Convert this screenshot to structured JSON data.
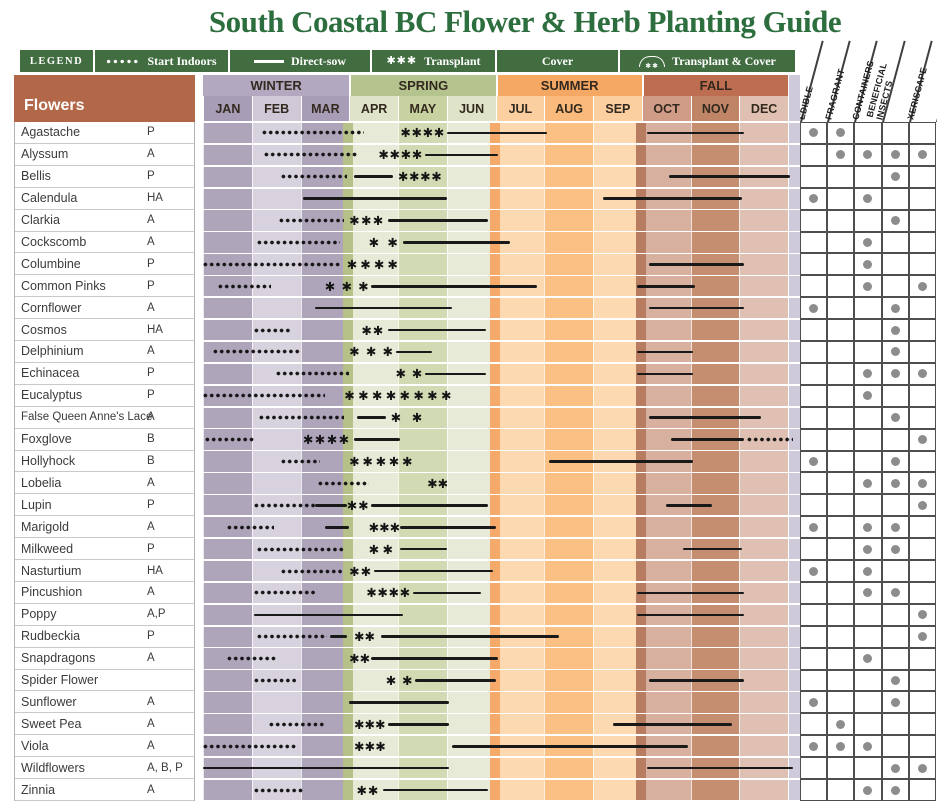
{
  "title": "South Coastal BC Flower & Herb Planting Guide",
  "legend": {
    "label": "LEGEND",
    "items": [
      {
        "symbol": "dots-icon",
        "label": "Start Indoors"
      },
      {
        "symbol": "line-icon",
        "label": "Direct-sow"
      },
      {
        "symbol": "stars-icon",
        "label": "Transplant"
      },
      {
        "symbol": "none",
        "label": "Cover"
      },
      {
        "symbol": "arc-icon",
        "label": "Transplant & Cover"
      }
    ]
  },
  "colors": {
    "title_green": "#2d6e3e",
    "legend_green": "#426d41",
    "flowers_header_bg": "#b26749",
    "season_bands": [
      "#b2a9c0",
      "#b5c48e",
      "#f5a863",
      "#bd6e50"
    ],
    "month_header": [
      "#a79db6",
      "#cfc9d7",
      "#a79db6",
      "#dfe4c9",
      "#c8d2a0",
      "#dfe4c9",
      "#fccfa0",
      "#f9ba7b",
      "#fccfa0",
      "#d09c88",
      "#c08466",
      "#e0c0b0"
    ],
    "month_body": [
      "#aea5bb",
      "#d7d2de",
      "#aea5bb",
      "#e7ead6",
      "#d2dab3",
      "#e7ead6",
      "#fdd9b2",
      "#fbc083",
      "#fdd9b2",
      "#d8b0a0",
      "#c58e71",
      "#dfc0b2"
    ],
    "season_slivers": [
      "#b5c189",
      "#f5a96b",
      "#b87c60"
    ],
    "end_strip": "#cfcad9",
    "attr_dot": "#8c8c8c",
    "symbol_black": "#191919"
  },
  "chart_data": {
    "type": "gantt",
    "title": "South Coastal BC Flower & Herb Planting Guide",
    "row_header": "Flowers",
    "x_axis_note": "timeline Jan-Dec, month units 0-12",
    "seasons": [
      {
        "name": "WINTER",
        "months": [
          "JAN",
          "FEB",
          "MAR"
        ]
      },
      {
        "name": "SPRING",
        "months": [
          "APR",
          "MAY",
          "JUN"
        ]
      },
      {
        "name": "SUMMER",
        "months": [
          "JUL",
          "AUG",
          "SEP"
        ]
      },
      {
        "name": "FALL",
        "months": [
          "OCT",
          "NOV",
          "DEC"
        ]
      }
    ],
    "attribute_columns": [
      "EDIBLE",
      "FRAGRANT",
      "CONTAINERS",
      "BENEFICIAL\nINSECTS",
      "XERISCAPE"
    ],
    "segment_types": {
      "dots": "Start Indoors",
      "line": "Direct-sow",
      "stars": "Transplant"
    },
    "rows": [
      {
        "name": "Agastache",
        "type": "P",
        "attrs": [
          1,
          1,
          0,
          0,
          0
        ],
        "segments": [
          {
            "t": "dots",
            "s": 1.2,
            "e": 3.3
          },
          {
            "t": "stars",
            "s": 4.05,
            "e": 4.95,
            "n": 4
          },
          {
            "t": "line",
            "s": 5.0,
            "e": 7.05
          },
          {
            "t": "line",
            "s": 9.1,
            "e": 11.1
          }
        ]
      },
      {
        "name": "Alyssum",
        "type": "A",
        "attrs": [
          0,
          1,
          1,
          1,
          1
        ],
        "segments": [
          {
            "t": "dots",
            "s": 1.25,
            "e": 3.2
          },
          {
            "t": "stars",
            "s": 3.6,
            "e": 4.5,
            "n": 4
          },
          {
            "t": "line",
            "s": 4.55,
            "e": 6.05
          }
        ]
      },
      {
        "name": "Bellis",
        "type": "P",
        "attrs": [
          0,
          0,
          0,
          1,
          0
        ],
        "segments": [
          {
            "t": "dots",
            "s": 1.6,
            "e": 2.95
          },
          {
            "t": "line",
            "s": 3.1,
            "e": 3.9
          },
          {
            "t": "stars",
            "s": 4.0,
            "e": 4.9,
            "n": 4
          },
          {
            "t": "line",
            "s": 9.55,
            "e": 12.05
          }
        ]
      },
      {
        "name": "Calendula",
        "type": "HA",
        "attrs": [
          1,
          0,
          1,
          0,
          0
        ],
        "segments": [
          {
            "t": "line",
            "s": 2.05,
            "e": 5.0
          },
          {
            "t": "line",
            "s": 8.2,
            "e": 11.05
          }
        ]
      },
      {
        "name": "Clarkia",
        "type": "A",
        "attrs": [
          0,
          0,
          0,
          1,
          0
        ],
        "segments": [
          {
            "t": "dots",
            "s": 1.55,
            "e": 2.9
          },
          {
            "t": "stars",
            "s": 3.0,
            "e": 3.7,
            "n": 3
          },
          {
            "t": "line",
            "s": 3.8,
            "e": 5.85
          }
        ]
      },
      {
        "name": "Cockscomb",
        "type": "A",
        "attrs": [
          0,
          0,
          1,
          0,
          0
        ],
        "segments": [
          {
            "t": "dots",
            "s": 1.1,
            "e": 2.8
          },
          {
            "t": "stars",
            "s": 3.4,
            "e": 4.0,
            "n": 2
          },
          {
            "t": "line",
            "s": 4.1,
            "e": 6.3
          }
        ]
      },
      {
        "name": "Columbine",
        "type": "P",
        "attrs": [
          0,
          0,
          1,
          0,
          0
        ],
        "segments": [
          {
            "t": "dots",
            "s": 0.0,
            "e": 2.8
          },
          {
            "t": "stars",
            "s": 2.95,
            "e": 4.0,
            "n": 4
          },
          {
            "t": "line",
            "s": 9.15,
            "e": 11.1
          }
        ]
      },
      {
        "name": "Common Pinks",
        "type": "P",
        "attrs": [
          0,
          0,
          1,
          0,
          1
        ],
        "segments": [
          {
            "t": "dots",
            "s": 0.3,
            "e": 1.4
          },
          {
            "t": "stars",
            "s": 2.5,
            "e": 3.4,
            "n": 3
          },
          {
            "t": "line",
            "s": 3.45,
            "e": 6.85
          },
          {
            "t": "line",
            "s": 8.9,
            "e": 10.1
          }
        ]
      },
      {
        "name": "Cornflower",
        "type": "A",
        "attrs": [
          1,
          0,
          0,
          1,
          0
        ],
        "segments": [
          {
            "t": "line",
            "s": 2.3,
            "e": 5.1
          },
          {
            "t": "line",
            "s": 9.15,
            "e": 11.1
          }
        ]
      },
      {
        "name": "Cosmos",
        "type": "HA",
        "attrs": [
          0,
          0,
          0,
          1,
          0
        ],
        "segments": [
          {
            "t": "dots",
            "s": 1.05,
            "e": 1.8
          },
          {
            "t": "stars",
            "s": 3.25,
            "e": 3.7,
            "n": 2
          },
          {
            "t": "line",
            "s": 3.8,
            "e": 5.8
          }
        ]
      },
      {
        "name": "Delphinium",
        "type": "A",
        "attrs": [
          0,
          0,
          0,
          1,
          0
        ],
        "segments": [
          {
            "t": "dots",
            "s": 0.2,
            "e": 2.0
          },
          {
            "t": "stars",
            "s": 3.0,
            "e": 3.9,
            "n": 3
          },
          {
            "t": "line",
            "s": 3.95,
            "e": 4.7
          },
          {
            "t": "line",
            "s": 8.9,
            "e": 10.05
          }
        ]
      },
      {
        "name": "Echinacea",
        "type": "P",
        "attrs": [
          0,
          0,
          1,
          1,
          1
        ],
        "segments": [
          {
            "t": "dots",
            "s": 1.5,
            "e": 3.0
          },
          {
            "t": "stars",
            "s": 3.95,
            "e": 4.5,
            "n": 2
          },
          {
            "t": "line",
            "s": 4.55,
            "e": 5.8
          },
          {
            "t": "line",
            "s": 8.9,
            "e": 10.05
          }
        ]
      },
      {
        "name": "Eucalyptus",
        "type": "P",
        "attrs": [
          0,
          0,
          1,
          0,
          0
        ],
        "segments": [
          {
            "t": "dots",
            "s": 0.0,
            "e": 2.5
          },
          {
            "t": "stars",
            "s": 2.9,
            "e": 5.1,
            "n": 8
          }
        ]
      },
      {
        "name": "False Queen Anne's Lace",
        "type": "A",
        "attrs": [
          0,
          0,
          0,
          1,
          0
        ],
        "segments": [
          {
            "t": "dots",
            "s": 1.15,
            "e": 2.9
          },
          {
            "t": "line",
            "s": 3.15,
            "e": 3.75
          },
          {
            "t": "stars",
            "s": 3.85,
            "e": 4.5,
            "n": 2
          },
          {
            "t": "line",
            "s": 9.15,
            "e": 11.45
          }
        ]
      },
      {
        "name": "Foxglove",
        "type": "B",
        "attrs": [
          0,
          0,
          0,
          0,
          1
        ],
        "segments": [
          {
            "t": "dots",
            "s": 0.05,
            "e": 1.05
          },
          {
            "t": "stars",
            "s": 2.05,
            "e": 3.0,
            "n": 4
          },
          {
            "t": "line",
            "s": 3.1,
            "e": 4.05
          },
          {
            "t": "line",
            "s": 9.6,
            "e": 11.1
          },
          {
            "t": "dots",
            "s": 11.15,
            "e": 12.1
          }
        ]
      },
      {
        "name": "Hollyhock",
        "type": "B",
        "attrs": [
          1,
          0,
          0,
          1,
          0
        ],
        "segments": [
          {
            "t": "dots",
            "s": 1.6,
            "e": 2.4
          },
          {
            "t": "stars",
            "s": 3.0,
            "e": 4.3,
            "n": 5
          },
          {
            "t": "line",
            "s": 7.1,
            "e": 10.05
          }
        ]
      },
      {
        "name": "Lobelia",
        "type": "A",
        "attrs": [
          0,
          0,
          1,
          1,
          1
        ],
        "segments": [
          {
            "t": "dots",
            "s": 2.35,
            "e": 3.4
          },
          {
            "t": "stars",
            "s": 4.6,
            "e": 5.0,
            "n": 2
          }
        ]
      },
      {
        "name": "Lupin",
        "type": "P",
        "attrs": [
          0,
          0,
          0,
          0,
          1
        ],
        "segments": [
          {
            "t": "dots",
            "s": 1.05,
            "e": 2.3
          },
          {
            "t": "line",
            "s": 2.3,
            "e": 2.95
          },
          {
            "t": "stars",
            "s": 2.95,
            "e": 3.4,
            "n": 2
          },
          {
            "t": "line",
            "s": 3.45,
            "e": 5.85
          },
          {
            "t": "line",
            "s": 9.5,
            "e": 10.45
          }
        ]
      },
      {
        "name": "Marigold",
        "type": "A",
        "attrs": [
          1,
          0,
          1,
          1,
          0
        ],
        "segments": [
          {
            "t": "dots",
            "s": 0.5,
            "e": 1.45
          },
          {
            "t": "line",
            "s": 2.5,
            "e": 3.0
          },
          {
            "t": "stars",
            "s": 3.4,
            "e": 4.0,
            "n": 3
          },
          {
            "t": "line",
            "s": 4.05,
            "e": 6.0
          }
        ]
      },
      {
        "name": "Milkweed",
        "type": "P",
        "attrs": [
          0,
          0,
          1,
          1,
          0
        ],
        "segments": [
          {
            "t": "dots",
            "s": 1.1,
            "e": 2.9
          },
          {
            "t": "stars",
            "s": 3.4,
            "e": 3.9,
            "n": 2
          },
          {
            "t": "line",
            "s": 4.05,
            "e": 5.0
          },
          {
            "t": "line",
            "s": 9.85,
            "e": 11.05
          }
        ]
      },
      {
        "name": "Nasturtium",
        "type": "HA",
        "attrs": [
          1,
          0,
          1,
          0,
          0
        ],
        "segments": [
          {
            "t": "dots",
            "s": 1.6,
            "e": 2.9
          },
          {
            "t": "stars",
            "s": 3.0,
            "e": 3.45,
            "n": 2
          },
          {
            "t": "line",
            "s": 3.5,
            "e": 5.95
          }
        ]
      },
      {
        "name": "Pincushion",
        "type": "A",
        "attrs": [
          0,
          0,
          1,
          1,
          0
        ],
        "segments": [
          {
            "t": "dots",
            "s": 1.05,
            "e": 2.3
          },
          {
            "t": "stars",
            "s": 3.35,
            "e": 4.25,
            "n": 4
          },
          {
            "t": "line",
            "s": 4.3,
            "e": 5.7
          },
          {
            "t": "line",
            "s": 8.9,
            "e": 11.1
          }
        ]
      },
      {
        "name": "Poppy",
        "type": "A,P",
        "attrs": [
          0,
          0,
          0,
          0,
          1
        ],
        "segments": [
          {
            "t": "line",
            "s": 1.05,
            "e": 4.1
          },
          {
            "t": "line",
            "s": 8.9,
            "e": 11.1
          }
        ]
      },
      {
        "name": "Rudbeckia",
        "type": "P",
        "attrs": [
          0,
          0,
          0,
          0,
          1
        ],
        "segments": [
          {
            "t": "dots",
            "s": 1.1,
            "e": 2.55
          },
          {
            "t": "line",
            "s": 2.6,
            "e": 2.95
          },
          {
            "t": "stars",
            "s": 3.1,
            "e": 3.5,
            "n": 2
          },
          {
            "t": "line",
            "s": 3.65,
            "e": 7.3
          }
        ]
      },
      {
        "name": "Snapdragons",
        "type": "A",
        "attrs": [
          0,
          0,
          1,
          0,
          0
        ],
        "segments": [
          {
            "t": "dots",
            "s": 0.5,
            "e": 1.5
          },
          {
            "t": "stars",
            "s": 3.0,
            "e": 3.4,
            "n": 2
          },
          {
            "t": "line",
            "s": 3.45,
            "e": 6.05
          }
        ]
      },
      {
        "name": "Spider Flower",
        "type": "",
        "attrs": [
          0,
          0,
          0,
          1,
          0
        ],
        "segments": [
          {
            "t": "dots",
            "s": 1.05,
            "e": 1.9
          },
          {
            "t": "stars",
            "s": 3.75,
            "e": 4.3,
            "n": 2
          },
          {
            "t": "line",
            "s": 4.35,
            "e": 6.0
          },
          {
            "t": "line",
            "s": 9.15,
            "e": 11.1
          }
        ]
      },
      {
        "name": "Sunflower",
        "type": "A",
        "attrs": [
          1,
          0,
          0,
          1,
          0
        ],
        "segments": [
          {
            "t": "line",
            "s": 3.0,
            "e": 5.05
          }
        ]
      },
      {
        "name": "Sweet Pea",
        "type": "A",
        "attrs": [
          0,
          1,
          0,
          0,
          0
        ],
        "segments": [
          {
            "t": "dots",
            "s": 1.35,
            "e": 2.5
          },
          {
            "t": "stars",
            "s": 3.1,
            "e": 3.7,
            "n": 3
          },
          {
            "t": "line",
            "s": 3.8,
            "e": 5.05
          },
          {
            "t": "line",
            "s": 8.4,
            "e": 10.85
          }
        ]
      },
      {
        "name": "Viola",
        "type": "A",
        "attrs": [
          1,
          1,
          1,
          0,
          0
        ],
        "segments": [
          {
            "t": "dots",
            "s": 0.0,
            "e": 1.95
          },
          {
            "t": "stars",
            "s": 3.1,
            "e": 3.75,
            "n": 3
          },
          {
            "t": "line",
            "s": 5.1,
            "e": 9.95
          }
        ]
      },
      {
        "name": "Wildflowers",
        "type": "A, B, P",
        "attrs": [
          0,
          0,
          0,
          1,
          1
        ],
        "segments": [
          {
            "t": "line",
            "s": 0.0,
            "e": 5.05
          },
          {
            "t": "line",
            "s": 9.1,
            "e": 12.1
          }
        ]
      },
      {
        "name": "Zinnia",
        "type": "A",
        "attrs": [
          0,
          0,
          1,
          1,
          0
        ],
        "segments": [
          {
            "t": "dots",
            "s": 1.05,
            "e": 2.05
          },
          {
            "t": "stars",
            "s": 3.15,
            "e": 3.6,
            "n": 2
          },
          {
            "t": "line",
            "s": 3.7,
            "e": 5.85
          }
        ]
      }
    ]
  }
}
